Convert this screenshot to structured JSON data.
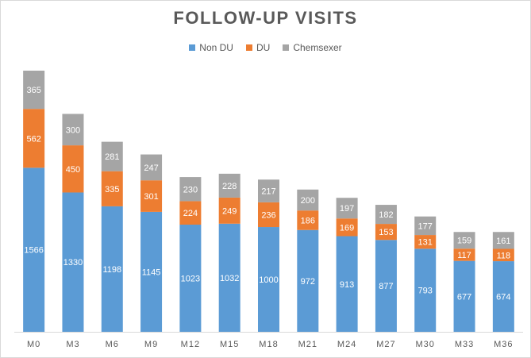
{
  "chart_data": {
    "type": "bar",
    "stacked": true,
    "title": "FOLLOW-UP VISITS",
    "xlabel": "",
    "ylabel": "",
    "categories": [
      "M0",
      "M3",
      "M6",
      "M9",
      "M12",
      "M15",
      "M18",
      "M21",
      "M24",
      "M27",
      "M30",
      "M33",
      "M36"
    ],
    "series": [
      {
        "name": "Non DU",
        "color": "#5b9bd5",
        "values": [
          1566,
          1330,
          1198,
          1145,
          1023,
          1032,
          1000,
          972,
          913,
          877,
          793,
          677,
          674
        ]
      },
      {
        "name": "DU",
        "color": "#ed7d31",
        "values": [
          562,
          450,
          335,
          301,
          224,
          249,
          236,
          186,
          169,
          153,
          131,
          117,
          118
        ]
      },
      {
        "name": "Chemsexer",
        "color": "#a5a5a5",
        "values": [
          365,
          300,
          281,
          247,
          230,
          228,
          217,
          200,
          197,
          182,
          177,
          159,
          161
        ]
      }
    ],
    "ylim": [
      0,
      2500
    ],
    "grid": false,
    "legend_position": "top"
  }
}
